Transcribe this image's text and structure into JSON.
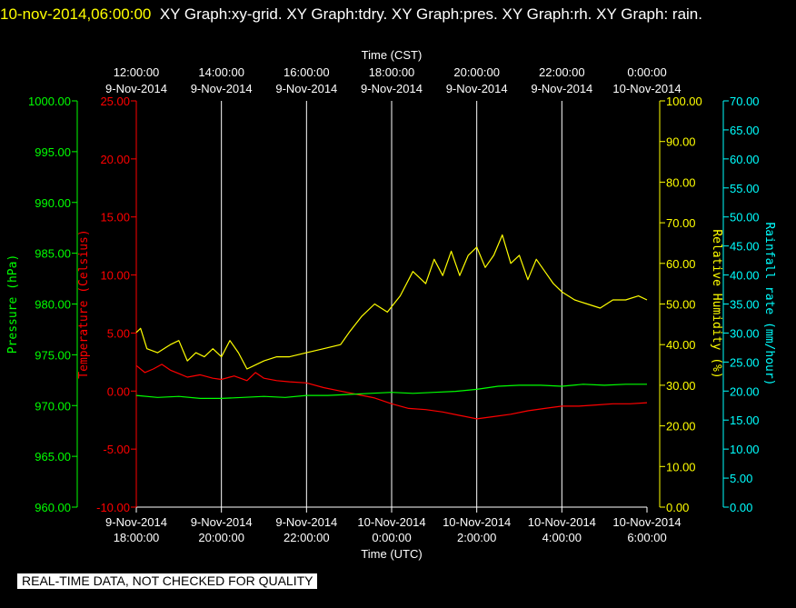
{
  "title": {
    "timestamp": "10-nov-2014,06:00:00",
    "graphs": "XY Graph:xy-grid.  XY Graph:tdry.  XY Graph:pres.  XY Graph:rh.  XY Graph: rain."
  },
  "footer": {
    "quality_notice": "REAL-TIME DATA, NOT CHECKED FOR QUALITY"
  },
  "colors": {
    "temperature": "#ff0000",
    "pressure": "#00ff00",
    "humidity": "#ffff00",
    "rain": "#00ffff",
    "grid": "#ffffff"
  },
  "chart_data": {
    "type": "line",
    "top_axis": {
      "label": "Time (CST)",
      "ticks": [
        {
          "time": "12:00:00",
          "date": "9-Nov-2014"
        },
        {
          "time": "14:00:00",
          "date": "9-Nov-2014"
        },
        {
          "time": "16:00:00",
          "date": "9-Nov-2014"
        },
        {
          "time": "18:00:00",
          "date": "9-Nov-2014"
        },
        {
          "time": "20:00:00",
          "date": "9-Nov-2014"
        },
        {
          "time": "22:00:00",
          "date": "9-Nov-2014"
        },
        {
          "time": "0:00:00",
          "date": "10-Nov-2014"
        }
      ]
    },
    "bottom_axis": {
      "label": "Time (UTC)",
      "ticks": [
        {
          "date": "9-Nov-2014",
          "time": "18:00:00"
        },
        {
          "date": "9-Nov-2014",
          "time": "20:00:00"
        },
        {
          "date": "9-Nov-2014",
          "time": "22:00:00"
        },
        {
          "date": "10-Nov-2014",
          "time": "0:00:00"
        },
        {
          "date": "10-Nov-2014",
          "time": "2:00:00"
        },
        {
          "date": "10-Nov-2014",
          "time": "4:00:00"
        },
        {
          "date": "10-Nov-2014",
          "time": "6:00:00"
        }
      ]
    },
    "x_hours_utc": [
      0,
      2,
      4,
      6,
      8,
      10,
      12
    ],
    "xlim": [
      0,
      12
    ],
    "axes": {
      "pressure": {
        "label": "Pressure (hPa)",
        "ylim": [
          960,
          1000
        ],
        "ticks": [
          "960.00",
          "965.00",
          "970.00",
          "975.00",
          "980.00",
          "985.00",
          "990.00",
          "995.00",
          "1000.00"
        ]
      },
      "temperature": {
        "label": "Temperature (Celsius)",
        "ylim": [
          -10,
          25
        ],
        "ticks": [
          "-10.00",
          "-5.00",
          "0.00",
          "5.00",
          "10.00",
          "15.00",
          "20.00",
          "25.00"
        ]
      },
      "humidity": {
        "label": "Relative Humidity (%)",
        "ylim": [
          0,
          100
        ],
        "ticks": [
          "0.00",
          "10.00",
          "20.00",
          "30.00",
          "40.00",
          "50.00",
          "60.00",
          "70.00",
          "80.00",
          "90.00",
          "100.00"
        ]
      },
      "rain": {
        "label": "Rainfall rate (mm/hour)",
        "ylim": [
          0,
          70
        ],
        "ticks": [
          "0.00",
          "5.00",
          "10.00",
          "15.00",
          "20.00",
          "25.00",
          "30.00",
          "35.00",
          "40.00",
          "45.00",
          "50.00",
          "55.00",
          "60.00",
          "65.00",
          "70.00"
        ]
      }
    },
    "series": [
      {
        "name": "Temperature (Celsius)",
        "axis": "temperature",
        "x": [
          0,
          0.2,
          0.4,
          0.6,
          0.8,
          1.0,
          1.2,
          1.5,
          1.8,
          2.0,
          2.3,
          2.6,
          2.8,
          3.0,
          3.3,
          3.6,
          4.0,
          4.4,
          4.8,
          5.2,
          5.6,
          6.0,
          6.4,
          6.8,
          7.2,
          7.6,
          8.0,
          8.4,
          8.8,
          9.2,
          9.6,
          10.0,
          10.4,
          10.8,
          11.2,
          11.6,
          12.0
        ],
        "values": [
          2.2,
          1.6,
          1.9,
          2.3,
          1.8,
          1.5,
          1.2,
          1.4,
          1.1,
          1.0,
          1.3,
          0.9,
          1.6,
          1.1,
          0.9,
          0.8,
          0.7,
          0.3,
          0.0,
          -0.3,
          -0.6,
          -1.1,
          -1.5,
          -1.6,
          -1.8,
          -2.1,
          -2.4,
          -2.2,
          -2.0,
          -1.7,
          -1.5,
          -1.3,
          -1.3,
          -1.2,
          -1.1,
          -1.1,
          -1.0
        ]
      },
      {
        "name": "Pressure (hPa)",
        "axis": "pressure",
        "x": [
          0,
          0.5,
          1.0,
          1.5,
          2.0,
          2.5,
          3.0,
          3.5,
          4.0,
          4.5,
          5.0,
          5.5,
          6.0,
          6.5,
          7.0,
          7.5,
          8.0,
          8.5,
          9.0,
          9.5,
          10.0,
          10.5,
          11.0,
          11.5,
          12.0
        ],
        "values": [
          971.0,
          970.8,
          970.9,
          970.7,
          970.7,
          970.8,
          970.9,
          970.8,
          971.0,
          971.0,
          971.1,
          971.2,
          971.3,
          971.2,
          971.3,
          971.4,
          971.6,
          971.9,
          972.0,
          972.0,
          971.9,
          972.1,
          972.0,
          972.1,
          972.1
        ]
      },
      {
        "name": "Relative Humidity (%)",
        "axis": "humidity",
        "x": [
          0,
          0.1,
          0.25,
          0.5,
          0.8,
          1.0,
          1.2,
          1.4,
          1.6,
          1.8,
          2.0,
          2.2,
          2.4,
          2.6,
          2.8,
          3.0,
          3.3,
          3.6,
          4.0,
          4.4,
          4.8,
          5.0,
          5.3,
          5.6,
          5.9,
          6.2,
          6.5,
          6.8,
          7.0,
          7.2,
          7.4,
          7.6,
          7.8,
          8.0,
          8.2,
          8.4,
          8.6,
          8.8,
          9.0,
          9.2,
          9.4,
          9.6,
          9.8,
          10.0,
          10.3,
          10.6,
          10.9,
          11.2,
          11.5,
          11.8,
          12.0
        ],
        "values": [
          43,
          44,
          39,
          38,
          40,
          41,
          36,
          38,
          37,
          39,
          37,
          41,
          38,
          34,
          35,
          36,
          37,
          37,
          38,
          39,
          40,
          43,
          47,
          50,
          48,
          52,
          58,
          55,
          61,
          57,
          63,
          57,
          62,
          64,
          59,
          62,
          67,
          60,
          62,
          56,
          61,
          58,
          55,
          53,
          51,
          50,
          49,
          51,
          51,
          52,
          51
        ]
      },
      {
        "name": "Rainfall rate (mm/hour)",
        "axis": "rain",
        "x": [],
        "values": []
      }
    ],
    "grid": "vertical"
  }
}
